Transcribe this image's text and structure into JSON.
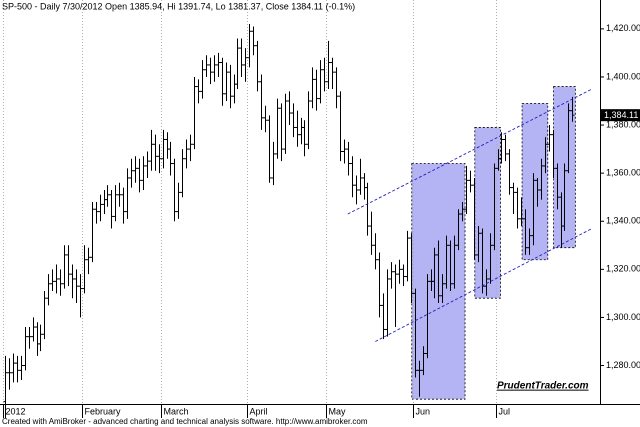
{
  "chart_data": {
    "type": "ohlc",
    "title": "SP-500 - Daily 7/30/2012 Open 1385.94, Hi 1391.74, Lo 1381.37, Close 1384.11 (-0.1%)",
    "footer": "Created with AmiBroker - advanced charting and technical analysis software. http://www.amibroker.com",
    "watermark": "PrudentTrader.com",
    "color": "#000000",
    "grid": true,
    "categories": [
      "2012",
      null,
      null,
      null,
      null,
      null,
      null,
      null,
      null,
      null,
      null,
      null,
      null,
      null,
      null,
      null,
      null,
      null,
      null,
      null,
      "February",
      null,
      null,
      null,
      null,
      null,
      null,
      null,
      null,
      null,
      null,
      null,
      null,
      null,
      null,
      null,
      null,
      null,
      null,
      null,
      "March",
      null,
      null,
      null,
      null,
      null,
      null,
      null,
      null,
      null,
      null,
      null,
      null,
      null,
      null,
      null,
      null,
      null,
      null,
      null,
      null,
      null,
      "April",
      null,
      null,
      null,
      null,
      null,
      null,
      null,
      null,
      null,
      null,
      null,
      null,
      null,
      null,
      null,
      null,
      null,
      null,
      null,
      "May",
      null,
      null,
      null,
      null,
      null,
      null,
      null,
      null,
      null,
      null,
      null,
      null,
      null,
      null,
      null,
      null,
      null,
      null,
      null,
      null,
      null,
      "Jun",
      null,
      null,
      null,
      null,
      null,
      null,
      null,
      null,
      null,
      null,
      null,
      null,
      null,
      null,
      null,
      null,
      null,
      null,
      null,
      null,
      "Jul",
      null,
      null,
      null,
      null,
      null,
      null,
      null,
      null,
      null,
      null,
      null,
      null,
      null,
      null,
      null,
      null,
      null,
      null,
      null
    ],
    "ohlc": [
      [
        1265,
        1284,
        1258,
        1277
      ],
      [
        1277,
        1283,
        1270,
        1277
      ],
      [
        1277,
        1285,
        1273,
        1281
      ],
      [
        1281,
        1284,
        1273,
        1278
      ],
      [
        1278,
        1284,
        1274,
        1280
      ],
      [
        1280,
        1296,
        1278,
        1292
      ],
      [
        1292,
        1296,
        1287,
        1292
      ],
      [
        1292,
        1300,
        1290,
        1296
      ],
      [
        1296,
        1298,
        1284,
        1289
      ],
      [
        1289,
        1297,
        1286,
        1293
      ],
      [
        1293,
        1311,
        1291,
        1308
      ],
      [
        1308,
        1318,
        1305,
        1314
      ],
      [
        1314,
        1320,
        1311,
        1315
      ],
      [
        1315,
        1322,
        1310,
        1316
      ],
      [
        1316,
        1320,
        1309,
        1314
      ],
      [
        1314,
        1330,
        1312,
        1326
      ],
      [
        1326,
        1330,
        1313,
        1318
      ],
      [
        1318,
        1322,
        1308,
        1316
      ],
      [
        1316,
        1320,
        1306,
        1313
      ],
      [
        1313,
        1318,
        1300,
        1312
      ],
      [
        1312,
        1330,
        1310,
        1324
      ],
      [
        1324,
        1329,
        1318,
        1325
      ],
      [
        1325,
        1348,
        1323,
        1345
      ],
      [
        1345,
        1348,
        1339,
        1344
      ],
      [
        1344,
        1351,
        1340,
        1347
      ],
      [
        1347,
        1353,
        1343,
        1349
      ],
      [
        1349,
        1355,
        1346,
        1351
      ],
      [
        1351,
        1353,
        1337,
        1342
      ],
      [
        1342,
        1355,
        1340,
        1351
      ],
      [
        1351,
        1356,
        1346,
        1351
      ],
      [
        1351,
        1354,
        1339,
        1344
      ],
      [
        1344,
        1362,
        1341,
        1358
      ],
      [
        1358,
        1366,
        1354,
        1361
      ],
      [
        1361,
        1367,
        1356,
        1362
      ],
      [
        1362,
        1366,
        1352,
        1357
      ],
      [
        1357,
        1367,
        1353,
        1363
      ],
      [
        1363,
        1369,
        1358,
        1365
      ],
      [
        1365,
        1378,
        1361,
        1372
      ],
      [
        1372,
        1376,
        1361,
        1367
      ],
      [
        1367,
        1372,
        1360,
        1366
      ],
      [
        1366,
        1378,
        1362,
        1374
      ],
      [
        1374,
        1377,
        1366,
        1370
      ],
      [
        1370,
        1373,
        1359,
        1364
      ],
      [
        1364,
        1366,
        1340,
        1344
      ],
      [
        1344,
        1356,
        1341,
        1352
      ],
      [
        1352,
        1370,
        1350,
        1366
      ],
      [
        1366,
        1374,
        1362,
        1370
      ],
      [
        1370,
        1376,
        1365,
        1372
      ],
      [
        1372,
        1400,
        1370,
        1396
      ],
      [
        1396,
        1399,
        1389,
        1394
      ],
      [
        1394,
        1407,
        1391,
        1403
      ],
      [
        1403,
        1409,
        1400,
        1405
      ],
      [
        1405,
        1408,
        1397,
        1402
      ],
      [
        1402,
        1409,
        1398,
        1405
      ],
      [
        1405,
        1410,
        1400,
        1406
      ],
      [
        1406,
        1408,
        1388,
        1393
      ],
      [
        1393,
        1406,
        1390,
        1402
      ],
      [
        1402,
        1405,
        1387,
        1392
      ],
      [
        1392,
        1401,
        1389,
        1397
      ],
      [
        1397,
        1416,
        1395,
        1412
      ],
      [
        1412,
        1416,
        1400,
        1405
      ],
      [
        1405,
        1412,
        1398,
        1408
      ],
      [
        1408,
        1422,
        1404,
        1419
      ],
      [
        1419,
        1421,
        1409,
        1413
      ],
      [
        1413,
        1415,
        1394,
        1398
      ],
      [
        1398,
        1401,
        1378,
        1383
      ],
      [
        1383,
        1388,
        1377,
        1382
      ],
      [
        1382,
        1384,
        1356,
        1358
      ],
      [
        1358,
        1373,
        1355,
        1368
      ],
      [
        1368,
        1391,
        1366,
        1387
      ],
      [
        1387,
        1389,
        1365,
        1370
      ],
      [
        1370,
        1393,
        1368,
        1390
      ],
      [
        1390,
        1394,
        1380,
        1385
      ],
      [
        1385,
        1389,
        1375,
        1379
      ],
      [
        1379,
        1386,
        1371,
        1376
      ],
      [
        1376,
        1383,
        1372,
        1379
      ],
      [
        1379,
        1382,
        1367,
        1372
      ],
      [
        1372,
        1394,
        1370,
        1390
      ],
      [
        1390,
        1404,
        1387,
        1399
      ],
      [
        1399,
        1403,
        1386,
        1391
      ],
      [
        1391,
        1407,
        1389,
        1403
      ],
      [
        1403,
        1408,
        1394,
        1398
      ],
      [
        1398,
        1415,
        1395,
        1406
      ],
      [
        1406,
        1408,
        1395,
        1402
      ],
      [
        1402,
        1404,
        1387,
        1392
      ],
      [
        1392,
        1394,
        1365,
        1369
      ],
      [
        1369,
        1374,
        1364,
        1370
      ],
      [
        1370,
        1373,
        1359,
        1364
      ],
      [
        1364,
        1367,
        1350,
        1355
      ],
      [
        1355,
        1359,
        1347,
        1353
      ],
      [
        1353,
        1366,
        1351,
        1358
      ],
      [
        1358,
        1360,
        1349,
        1354
      ],
      [
        1354,
        1356,
        1334,
        1338
      ],
      [
        1338,
        1344,
        1326,
        1330
      ],
      [
        1330,
        1335,
        1320,
        1324
      ],
      [
        1324,
        1327,
        1300,
        1305
      ],
      [
        1305,
        1310,
        1291,
        1295
      ],
      [
        1295,
        1320,
        1292,
        1316
      ],
      [
        1316,
        1323,
        1312,
        1319
      ],
      [
        1319,
        1322,
        1296,
        1318
      ],
      [
        1318,
        1324,
        1314,
        1320
      ],
      [
        1320,
        1322,
        1313,
        1317
      ],
      [
        1317,
        1336,
        1315,
        1333
      ],
      [
        1333,
        1335,
        1306,
        1310
      ],
      [
        1310,
        1312,
        1275,
        1278
      ],
      [
        1278,
        1282,
        1267,
        1278
      ],
      [
        1278,
        1288,
        1276,
        1285
      ],
      [
        1285,
        1318,
        1283,
        1315
      ],
      [
        1315,
        1320,
        1311,
        1315
      ],
      [
        1315,
        1329,
        1308,
        1326
      ],
      [
        1326,
        1332,
        1306,
        1309
      ],
      [
        1309,
        1318,
        1306,
        1314
      ],
      [
        1314,
        1334,
        1312,
        1330
      ],
      [
        1330,
        1332,
        1311,
        1314
      ],
      [
        1314,
        1334,
        1312,
        1330
      ],
      [
        1330,
        1345,
        1328,
        1343
      ],
      [
        1343,
        1348,
        1340,
        1345
      ],
      [
        1345,
        1363,
        1343,
        1357
      ],
      [
        1357,
        1361,
        1352,
        1355
      ],
      [
        1355,
        1358,
        1324,
        1326
      ],
      [
        1326,
        1338,
        1323,
        1335
      ],
      [
        1335,
        1337,
        1310,
        1313
      ],
      [
        1313,
        1320,
        1309,
        1316
      ],
      [
        1316,
        1335,
        1314,
        1330
      ],
      [
        1330,
        1364,
        1328,
        1362
      ],
      [
        1362,
        1370,
        1361,
        1366
      ],
      [
        1366,
        1377,
        1364,
        1374
      ],
      [
        1374,
        1376,
        1365,
        1368
      ],
      [
        1368,
        1370,
        1351,
        1354
      ],
      [
        1354,
        1356,
        1343,
        1352
      ],
      [
        1352,
        1354,
        1337,
        1341
      ],
      [
        1341,
        1350,
        1338,
        1341
      ],
      [
        1341,
        1345,
        1326,
        1329
      ],
      [
        1329,
        1337,
        1326,
        1334
      ],
      [
        1334,
        1360,
        1330,
        1357
      ],
      [
        1357,
        1358,
        1346,
        1353
      ],
      [
        1353,
        1366,
        1349,
        1363
      ],
      [
        1363,
        1375,
        1360,
        1372
      ],
      [
        1372,
        1380,
        1369,
        1376
      ],
      [
        1376,
        1378,
        1358,
        1362
      ],
      [
        1362,
        1364,
        1345,
        1350
      ],
      [
        1350,
        1352,
        1329,
        1338
      ],
      [
        1338,
        1364,
        1336,
        1361
      ],
      [
        1361,
        1389,
        1360,
        1386
      ],
      [
        1385.94,
        1391.74,
        1381.37,
        1384.11
      ]
    ],
    "ylim": [
      1264,
      1432
    ],
    "yticks": [
      {
        "value": 1280,
        "label": "1,280.00"
      },
      {
        "value": 1300,
        "label": "1,300.00"
      },
      {
        "value": 1320,
        "label": "1,320.00"
      },
      {
        "value": 1340,
        "label": "1,340.00"
      },
      {
        "value": 1360,
        "label": "1,360.00"
      },
      {
        "value": 1380,
        "label": "1,380.00"
      },
      {
        "value": 1400,
        "label": "1,400.00"
      },
      {
        "value": 1420,
        "label": "1,420.00"
      }
    ],
    "last_price": {
      "value": 1384.11,
      "label": "1,384.11"
    },
    "highlight_color": "#9b9bf0",
    "highlights": [
      {
        "start": 104,
        "end": 116,
        "top": 1364,
        "bottom": 1266
      },
      {
        "start": 120,
        "end": 125,
        "top": 1379,
        "bottom": 1308
      },
      {
        "start": 132,
        "end": 137,
        "top": 1389,
        "bottom": 1324
      },
      {
        "start": 140,
        "end": 144,
        "top": 1396,
        "bottom": 1329
      }
    ],
    "channel_color": "#2020c0",
    "channel": [
      {
        "x": [
          87,
          149
        ],
        "y": [
          1343,
          1395
        ]
      },
      {
        "x": [
          94,
          149
        ],
        "y": [
          1290,
          1337
        ]
      }
    ]
  }
}
